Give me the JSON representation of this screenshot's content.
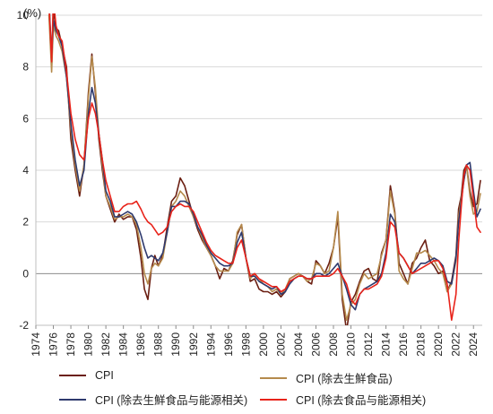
{
  "chart_data": {
    "type": "line",
    "unit_label": "(%)",
    "xlim": [
      1974,
      2025
    ],
    "ylim": [
      -2,
      10
    ],
    "x_ticks": [
      1974,
      1976,
      1978,
      1980,
      1982,
      1984,
      1986,
      1988,
      1990,
      1992,
      1994,
      1996,
      1998,
      2000,
      2002,
      2004,
      2006,
      2008,
      2010,
      2012,
      2014,
      2016,
      2018,
      2020,
      2022,
      2024
    ],
    "y_ticks": [
      -2,
      0,
      2,
      4,
      6,
      8,
      10
    ],
    "grid": "horizontal",
    "legend_position": "bottom",
    "series": [
      {
        "name": "CPI",
        "color": "#6b1f12",
        "x": [
          1975.5,
          1975.8,
          1976,
          1976.3,
          1976.6,
          1977,
          1977.5,
          1978,
          1978.5,
          1979,
          1979.5,
          1980,
          1980.4,
          1980.8,
          1981.2,
          1981.6,
          1982,
          1982.5,
          1983,
          1983.5,
          1984,
          1984.5,
          1985,
          1985.5,
          1986,
          1986.4,
          1986.8,
          1987.2,
          1987.6,
          1988,
          1988.5,
          1989,
          1989.5,
          1990,
          1990.5,
          1991,
          1991.5,
          1992,
          1992.5,
          1993,
          1993.5,
          1994,
          1994.5,
          1995,
          1995.5,
          1996,
          1996.5,
          1997,
          1997.5,
          1998,
          1998.5,
          1999,
          1999.5,
          2000,
          2000.5,
          2001,
          2001.5,
          2002,
          2002.5,
          2003,
          2003.5,
          2004,
          2004.5,
          2005,
          2005.5,
          2006,
          2006.5,
          2007,
          2007.5,
          2008,
          2008.5,
          2009,
          2009.5,
          2010,
          2010.5,
          2011,
          2011.5,
          2012,
          2012.5,
          2013,
          2013.5,
          2014,
          2014.5,
          2015,
          2015.5,
          2016,
          2016.5,
          2017,
          2017.5,
          2018,
          2018.5,
          2019,
          2019.5,
          2020,
          2020.5,
          2021,
          2021.5,
          2022,
          2022.3,
          2022.6,
          2022.9,
          2023.2,
          2023.6,
          2024,
          2024.4,
          2024.8
        ],
        "values": [
          10.5,
          8.0,
          10.2,
          9.5,
          9.4,
          8.8,
          8.0,
          5.2,
          4.0,
          3.0,
          4.2,
          7.0,
          8.5,
          7.0,
          5.2,
          4.0,
          3.0,
          2.5,
          2.0,
          2.3,
          2.1,
          2.2,
          2.2,
          1.7,
          0.6,
          -0.6,
          -1.0,
          0.2,
          0.7,
          0.3,
          0.7,
          1.8,
          2.8,
          3.0,
          3.7,
          3.4,
          2.8,
          2.2,
          1.7,
          1.3,
          1.0,
          0.7,
          0.3,
          -0.2,
          0.2,
          0.1,
          0.5,
          1.5,
          1.9,
          0.6,
          -0.3,
          -0.2,
          -0.6,
          -0.7,
          -0.7,
          -0.8,
          -0.7,
          -0.9,
          -0.7,
          -0.2,
          -0.1,
          0.0,
          -0.1,
          -0.3,
          -0.4,
          0.5,
          0.3,
          0.0,
          0.4,
          1.0,
          2.2,
          -1.0,
          -2.2,
          -1.1,
          -0.8,
          -0.3,
          0.1,
          0.2,
          -0.2,
          -0.3,
          0.8,
          1.3,
          3.4,
          2.4,
          0.4,
          0.0,
          -0.4,
          0.4,
          0.6,
          1.0,
          1.3,
          0.5,
          0.3,
          0.0,
          0.1,
          -0.7,
          -0.3,
          0.7,
          2.5,
          3.0,
          4.0,
          4.2,
          3.2,
          2.6,
          2.7,
          3.6
        ]
      },
      {
        "name": "CPI (除去生鮮食品)",
        "color": "#b58a4c",
        "x": [
          1975.5,
          1975.8,
          1976,
          1976.3,
          1976.6,
          1977,
          1977.5,
          1978,
          1978.5,
          1979,
          1979.5,
          1980,
          1980.4,
          1980.8,
          1981.2,
          1981.6,
          1982,
          1982.5,
          1983,
          1983.5,
          1984,
          1984.5,
          1985,
          1985.5,
          1986,
          1986.4,
          1986.8,
          1987.2,
          1987.6,
          1988,
          1988.5,
          1989,
          1989.5,
          1990,
          1990.5,
          1991,
          1991.5,
          1992,
          1992.5,
          1993,
          1993.5,
          1994,
          1994.5,
          1995,
          1995.5,
          1996,
          1996.5,
          1997,
          1997.5,
          1998,
          1998.5,
          1999,
          1999.5,
          2000,
          2000.5,
          2001,
          2001.5,
          2002,
          2002.5,
          2003,
          2003.5,
          2004,
          2004.5,
          2005,
          2005.5,
          2006,
          2006.5,
          2007,
          2007.5,
          2008,
          2008.5,
          2009,
          2009.5,
          2010,
          2010.5,
          2011,
          2011.5,
          2012,
          2012.5,
          2013,
          2013.5,
          2014,
          2014.5,
          2015,
          2015.5,
          2016,
          2016.5,
          2017,
          2017.5,
          2018,
          2018.5,
          2019,
          2019.5,
          2020,
          2020.5,
          2021,
          2021.5,
          2022,
          2022.3,
          2022.6,
          2022.9,
          2023.2,
          2023.6,
          2024,
          2024.4,
          2024.8
        ],
        "values": [
          10.0,
          7.8,
          9.6,
          9.2,
          9.0,
          8.6,
          7.6,
          5.6,
          4.2,
          3.2,
          4.2,
          6.8,
          8.4,
          7.2,
          5.4,
          4.2,
          3.0,
          2.6,
          2.1,
          2.2,
          2.2,
          2.3,
          2.2,
          1.9,
          1.0,
          0.0,
          -0.4,
          0.2,
          0.4,
          0.3,
          0.6,
          1.6,
          2.6,
          2.8,
          3.2,
          3.0,
          2.6,
          2.2,
          1.8,
          1.4,
          1.0,
          0.7,
          0.3,
          0.1,
          0.1,
          0.1,
          0.4,
          1.6,
          1.9,
          0.6,
          -0.2,
          0.0,
          -0.2,
          -0.4,
          -0.5,
          -0.7,
          -0.6,
          -0.8,
          -0.6,
          -0.2,
          -0.1,
          0.0,
          -0.1,
          -0.3,
          -0.2,
          0.4,
          0.3,
          0.0,
          0.1,
          1.0,
          2.4,
          -0.8,
          -1.8,
          -1.2,
          -1.0,
          -0.4,
          0.0,
          -0.2,
          -0.1,
          0.0,
          0.7,
          1.3,
          3.2,
          2.3,
          0.1,
          -0.2,
          -0.4,
          0.2,
          0.8,
          0.8,
          0.9,
          0.7,
          0.5,
          0.2,
          0.0,
          -0.7,
          -0.4,
          0.5,
          2.2,
          2.9,
          3.6,
          4.2,
          3.0,
          2.3,
          2.4,
          3.1
        ]
      },
      {
        "name": "CPI (除去生鮮食品与能源相关)",
        "color": "#2e3a6e",
        "x": [
          1975.5,
          1975.8,
          1976,
          1976.3,
          1976.6,
          1977,
          1977.5,
          1978,
          1978.5,
          1979,
          1979.5,
          1980,
          1980.4,
          1980.8,
          1981.2,
          1981.6,
          1982,
          1982.5,
          1983,
          1983.5,
          1984,
          1984.5,
          1985,
          1985.5,
          1986,
          1986.4,
          1986.8,
          1987.2,
          1987.6,
          1988,
          1988.5,
          1989,
          1989.5,
          1990,
          1990.5,
          1991,
          1991.5,
          1992,
          1992.5,
          1993,
          1993.5,
          1994,
          1994.5,
          1995,
          1995.5,
          1996,
          1996.5,
          1997,
          1997.5,
          1998,
          1998.5,
          1999,
          1999.5,
          2000,
          2000.5,
          2001,
          2001.5,
          2002,
          2002.5,
          2003,
          2003.5,
          2004,
          2004.5,
          2005,
          2005.5,
          2006,
          2006.5,
          2007,
          2007.5,
          2008,
          2008.5,
          2009,
          2009.5,
          2010,
          2010.5,
          2011,
          2011.5,
          2012,
          2012.5,
          2013,
          2013.5,
          2014,
          2014.5,
          2015,
          2015.5,
          2016,
          2016.5,
          2017,
          2017.5,
          2018,
          2018.5,
          2019,
          2019.5,
          2020,
          2020.5,
          2021,
          2021.5,
          2022,
          2022.3,
          2022.6,
          2022.9,
          2023.2,
          2023.6,
          2024,
          2024.4,
          2024.8
        ],
        "values": [
          10.6,
          8.4,
          9.8,
          9.4,
          9.2,
          8.8,
          7.6,
          5.8,
          4.4,
          3.4,
          4.0,
          6.2,
          7.2,
          6.6,
          5.4,
          4.4,
          3.2,
          2.8,
          2.2,
          2.2,
          2.3,
          2.4,
          2.3,
          2.0,
          1.5,
          1.0,
          0.6,
          0.7,
          0.6,
          0.5,
          0.8,
          1.6,
          2.6,
          2.6,
          2.8,
          2.8,
          2.7,
          2.3,
          1.8,
          1.5,
          1.1,
          0.8,
          0.6,
          0.4,
          0.3,
          0.3,
          0.4,
          1.2,
          1.6,
          0.6,
          -0.1,
          -0.1,
          -0.3,
          -0.4,
          -0.5,
          -0.6,
          -0.5,
          -0.8,
          -0.7,
          -0.4,
          -0.2,
          -0.1,
          -0.1,
          -0.2,
          -0.2,
          0.0,
          0.0,
          -0.1,
          0.0,
          0.2,
          0.4,
          -0.1,
          -0.6,
          -1.2,
          -1.4,
          -0.8,
          -0.6,
          -0.5,
          -0.4,
          -0.3,
          0.0,
          0.8,
          2.3,
          2.0,
          0.8,
          0.6,
          0.3,
          0.0,
          0.2,
          0.4,
          0.4,
          0.5,
          0.6,
          0.5,
          0.3,
          -0.3,
          -0.4,
          0.6,
          2.0,
          2.8,
          3.6,
          4.2,
          4.3,
          3.2,
          2.2,
          2.5
        ]
      },
      {
        "name": "CPI (除去食品与能源相关)",
        "color": "#e8231a",
        "x": [
          1975.5,
          1975.8,
          1976,
          1976.3,
          1976.6,
          1977,
          1977.5,
          1978,
          1978.5,
          1979,
          1979.5,
          1980,
          1980.4,
          1980.8,
          1981.2,
          1981.6,
          1982,
          1982.5,
          1983,
          1983.5,
          1984,
          1984.5,
          1985,
          1985.5,
          1986,
          1986.4,
          1986.8,
          1987.2,
          1987.6,
          1988,
          1988.5,
          1989,
          1989.5,
          1990,
          1990.5,
          1991,
          1991.5,
          1992,
          1992.5,
          1993,
          1993.5,
          1994,
          1994.5,
          1995,
          1995.5,
          1996,
          1996.5,
          1997,
          1997.5,
          1998,
          1998.5,
          1999,
          1999.5,
          2000,
          2000.5,
          2001,
          2001.5,
          2002,
          2002.5,
          2003,
          2003.5,
          2004,
          2004.5,
          2005,
          2005.5,
          2006,
          2006.5,
          2007,
          2007.5,
          2008,
          2008.5,
          2009,
          2009.5,
          2010,
          2010.5,
          2011,
          2011.5,
          2012,
          2012.5,
          2013,
          2013.5,
          2014,
          2014.5,
          2015,
          2015.5,
          2016,
          2016.5,
          2017,
          2017.5,
          2018,
          2018.5,
          2019,
          2019.5,
          2020,
          2020.5,
          2021,
          2021.5,
          2022,
          2022.3,
          2022.6,
          2022.9,
          2023.2,
          2023.6,
          2024,
          2024.4,
          2024.8
        ],
        "values": [
          10.5,
          8.2,
          10.6,
          9.6,
          9.2,
          9.0,
          7.8,
          6.2,
          5.2,
          4.6,
          4.4,
          6.0,
          6.6,
          6.2,
          5.4,
          4.4,
          3.6,
          3.0,
          2.4,
          2.4,
          2.6,
          2.7,
          2.7,
          2.8,
          2.5,
          2.2,
          2.0,
          1.9,
          1.7,
          1.5,
          1.6,
          1.8,
          2.4,
          2.6,
          2.7,
          2.6,
          2.6,
          2.4,
          2.0,
          1.6,
          1.2,
          0.9,
          0.7,
          0.6,
          0.5,
          0.4,
          0.4,
          1.0,
          1.3,
          0.6,
          -0.1,
          0.0,
          -0.2,
          -0.3,
          -0.4,
          -0.5,
          -0.5,
          -0.7,
          -0.6,
          -0.3,
          -0.2,
          -0.1,
          -0.1,
          -0.2,
          -0.2,
          -0.1,
          -0.1,
          -0.1,
          -0.1,
          0.0,
          0.2,
          -0.1,
          -0.4,
          -1.0,
          -1.2,
          -0.8,
          -0.6,
          -0.6,
          -0.5,
          -0.4,
          -0.1,
          0.6,
          2.0,
          1.8,
          0.8,
          0.6,
          0.3,
          0.0,
          0.1,
          0.2,
          0.3,
          0.4,
          0.5,
          0.5,
          0.2,
          -0.4,
          -1.8,
          -0.8,
          1.2,
          2.6,
          3.8,
          4.2,
          4.0,
          2.9,
          1.8,
          1.6
        ]
      }
    ]
  }
}
